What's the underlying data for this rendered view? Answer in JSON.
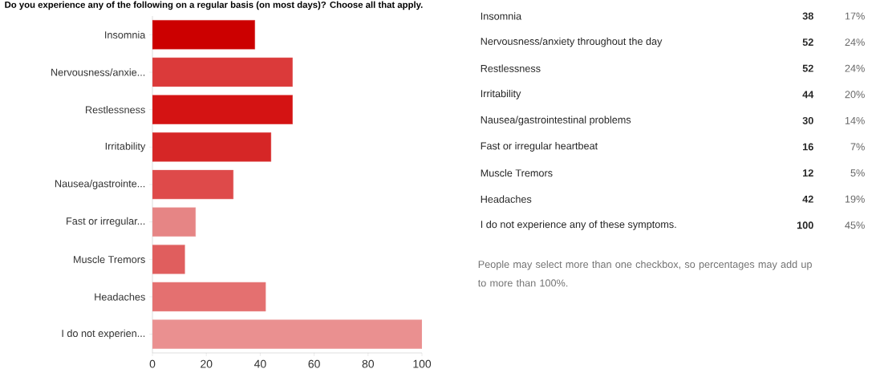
{
  "chart_data": [
    {
      "type": "bar",
      "orientation": "horizontal",
      "title": "Do you experience any of the following on a regular basis (on most days)? Choose all that apply.",
      "categories": [
        "Insomnia",
        "Nervousness/anxie...",
        "Restlessness",
        "Irritability",
        "Nausea/gastrointe...",
        "Fast or irregular...",
        "Muscle Tremors",
        "Headaches",
        "I do not experien..."
      ],
      "values": [
        38,
        52,
        52,
        44,
        30,
        16,
        12,
        42,
        100
      ],
      "colors": [
        "#cc0000",
        "#db3a3a",
        "#d41313",
        "#d62626",
        "#de4a4a",
        "#e68585",
        "#e05e5e",
        "#e47070",
        "#ea9090"
      ],
      "xlim": [
        0,
        100
      ],
      "xticks": [
        0,
        20,
        40,
        60,
        80,
        100
      ],
      "grid": false
    },
    {
      "type": "other",
      "categories": [
        "Insomnia",
        "Nervousness/anxiety throughout the day",
        "Restlessness",
        "Irritability",
        "Nausea/gastrointestinal problems",
        "Fast or irregular heartbeat",
        "Muscle Tremors",
        "Headaches",
        "I do not experience any of these symptoms."
      ],
      "series": [
        {
          "values": [
            38,
            52,
            52,
            44,
            30,
            16,
            12,
            42,
            100
          ]
        },
        {
          "values": [
            17,
            24,
            24,
            20,
            14,
            7,
            5,
            19,
            45
          ],
          "value_labels": [
            "17%",
            "24%",
            "24%",
            "20%",
            "14%",
            "7%",
            "5%",
            "19%",
            "45%"
          ]
        }
      ],
      "data_labels": true,
      "annotations": [
        "People may select more than one checkbox, so percentages may add up to more than 100%."
      ]
    }
  ]
}
